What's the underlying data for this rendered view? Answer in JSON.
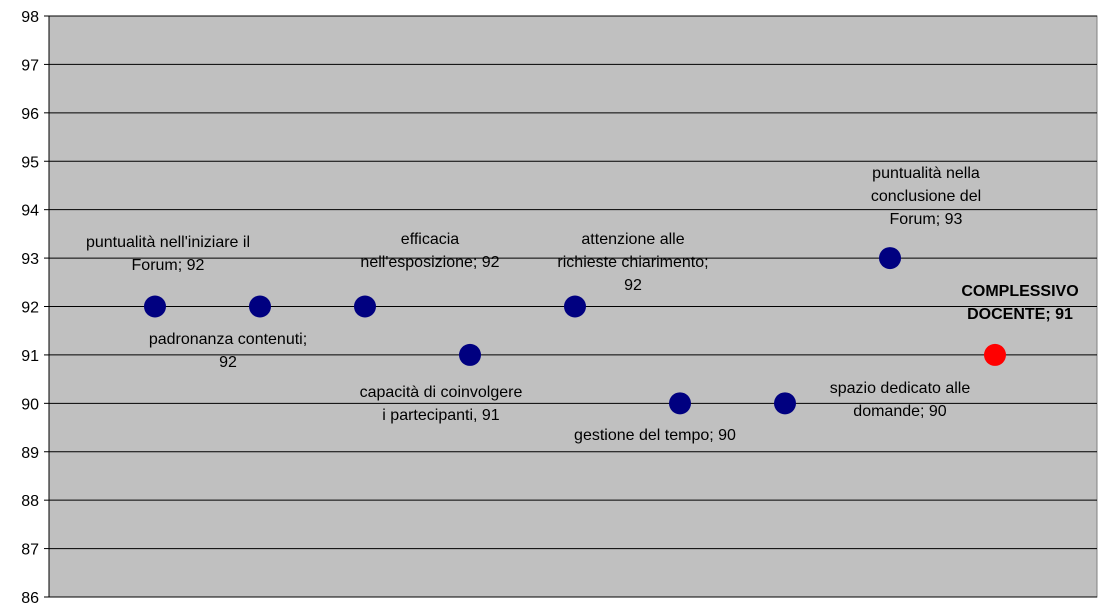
{
  "chart_data": {
    "type": "scatter",
    "title": "",
    "xlabel": "",
    "ylabel": "",
    "ylim": [
      86,
      98
    ],
    "yticks": [
      86,
      87,
      88,
      89,
      90,
      91,
      92,
      93,
      94,
      95,
      96,
      97,
      98
    ],
    "grid": true,
    "plot_background": "#c0c0c0",
    "point_color": "#000080",
    "highlight_color": "#ff0000",
    "points": [
      {
        "x": 1,
        "y": 92,
        "label_lines": [
          "puntualità nell'iniziare il",
          "Forum; 92"
        ],
        "highlight": false
      },
      {
        "x": 2,
        "y": 92,
        "label_lines": [
          "padronanza contenuti;",
          "92"
        ],
        "highlight": false
      },
      {
        "x": 3,
        "y": 92,
        "label_lines": [
          "efficacia",
          "nell'esposizione; 92"
        ],
        "highlight": false
      },
      {
        "x": 4,
        "y": 91,
        "label_lines": [
          "capacità di coinvolgere",
          "i partecipanti, 91"
        ],
        "highlight": false
      },
      {
        "x": 5,
        "y": 92,
        "label_lines": [
          "attenzione alle",
          "richieste chiarimento;",
          "92"
        ],
        "highlight": false
      },
      {
        "x": 6,
        "y": 90,
        "label_lines": [
          "gestione del tempo; 90"
        ],
        "highlight": false
      },
      {
        "x": 7,
        "y": 90,
        "label_lines": [
          "spazio dedicato alle",
          "domande; 90"
        ],
        "highlight": false
      },
      {
        "x": 8,
        "y": 93,
        "label_lines": [
          "puntualità nella",
          "conclusione del",
          "Forum; 93"
        ],
        "highlight": false
      },
      {
        "x": 9,
        "y": 91,
        "label_lines": [
          "COMPLESSIVO",
          "DOCENTE; 91"
        ],
        "highlight": true
      }
    ]
  }
}
